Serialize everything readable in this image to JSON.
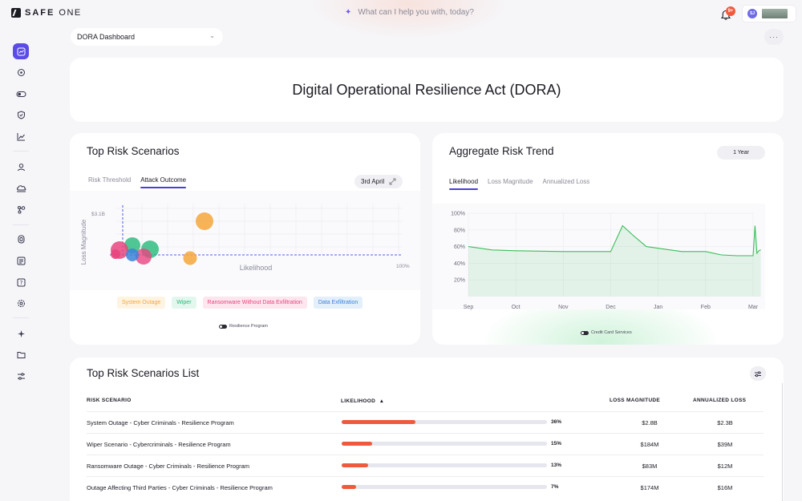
{
  "header": {
    "logo_bold": "SAFE",
    "logo_thin": "ONE",
    "search_placeholder": "What can I help you with, today?",
    "notification_badge": "9+",
    "user_initials": "SJ"
  },
  "sidebar": {
    "items": [
      {
        "icon": "dashboard-icon",
        "active": true
      },
      {
        "icon": "target-icon"
      },
      {
        "icon": "toggle-icon"
      },
      {
        "icon": "shield-check-icon"
      },
      {
        "icon": "trend-icon"
      },
      {
        "icon": "user-icon"
      },
      {
        "icon": "cloud-icon"
      },
      {
        "icon": "integration-icon"
      },
      {
        "icon": "database-icon"
      },
      {
        "icon": "list-icon"
      },
      {
        "icon": "help-icon"
      },
      {
        "icon": "settings-icon"
      },
      {
        "icon": "sparkle-icon"
      },
      {
        "icon": "folder-icon"
      },
      {
        "icon": "sliders-icon"
      }
    ]
  },
  "dashboard_select": {
    "value": "DORA Dashboard"
  },
  "more_label": "···",
  "page_title": "Digital Operational Resilience Act (DORA)",
  "top_risk": {
    "title": "Top Risk Scenarios",
    "tabs": [
      {
        "label": "Risk Threshold"
      },
      {
        "label": "Attack Outcome",
        "active": true
      }
    ],
    "date": "3rd April",
    "chart": {
      "y_axis_label": "Loss Magnitude",
      "x_axis_label": "Likelihood",
      "y_tick": "$3.1B",
      "x_end_tick": "100%"
    },
    "legend": [
      {
        "label": "System Outage",
        "color": "#f5a63b",
        "bg": "#fff3e2"
      },
      {
        "label": "Wiper",
        "color": "#26b97a",
        "bg": "#e3f7ee"
      },
      {
        "label": "Ransomware Without Data Exfiltration",
        "color": "#e8457f",
        "bg": "#fde6ee"
      },
      {
        "label": "Data Exfiltration",
        "color": "#3b82d9",
        "bg": "#e3effb"
      }
    ],
    "program_toggle": "Resilience Program"
  },
  "trend": {
    "title": "Aggregate Risk Trend",
    "period": "1 Year",
    "tabs": [
      {
        "label": "Likelihood",
        "active": true
      },
      {
        "label": "Loss Magnitude"
      },
      {
        "label": "Annualized Loss"
      }
    ],
    "service_toggle": "Credit Card Services",
    "line_color": "#3cbf5a"
  },
  "chart_data": {
    "type": "area",
    "title": "",
    "xlabel": "",
    "ylabel": "",
    "ylim": [
      0,
      100
    ],
    "y_ticks": [
      "100%",
      "80%",
      "60%",
      "40%",
      "20%"
    ],
    "x_ticks": [
      "Sep",
      "Oct",
      "Nov",
      "Dec",
      "Jan",
      "Feb",
      "Mar"
    ],
    "series": [
      {
        "x": [
          "Sep",
          "Sep",
          "Oct",
          "Nov",
          "Dec",
          "Dec",
          "Dec",
          "Dec",
          "Jan",
          "Jan",
          "Feb",
          "Feb",
          "Feb",
          "Mar",
          "Mar",
          "Mar",
          "Mar",
          "Mar"
        ],
        "values": [
          60,
          56,
          55,
          54,
          54,
          85,
          72,
          60,
          58,
          54,
          54,
          50,
          49,
          49,
          85,
          52,
          55,
          56
        ]
      }
    ]
  },
  "list": {
    "title": "Top Risk Scenarios List",
    "columns": {
      "scenario": "RISK SCENARIO",
      "likelihood": "LIKELIHOOD",
      "loss": "LOSS MAGNITUDE",
      "annual": "ANNUALIZED LOSS"
    },
    "rows": [
      {
        "scenario": "System Outage - Cyber Criminals - Resilience Program",
        "likelihood": "36%",
        "likelihood_value": 36,
        "loss": "$2.8B",
        "annual": "$2.3B"
      },
      {
        "scenario": "Wiper Scenario - Cybercriminals - Resilience Program",
        "likelihood": "15%",
        "likelihood_value": 15,
        "loss": "$184M",
        "annual": "$39M"
      },
      {
        "scenario": "Ransomware Outage - Cyber Criminals - Resilience Program",
        "likelihood": "13%",
        "likelihood_value": 13,
        "loss": "$83M",
        "annual": "$12M"
      },
      {
        "scenario": "Outage Affecting Third Parties - Cyber Criminals - Resilience Program",
        "likelihood": "7%",
        "likelihood_value": 7,
        "loss": "$174M",
        "annual": "$16M"
      }
    ]
  }
}
